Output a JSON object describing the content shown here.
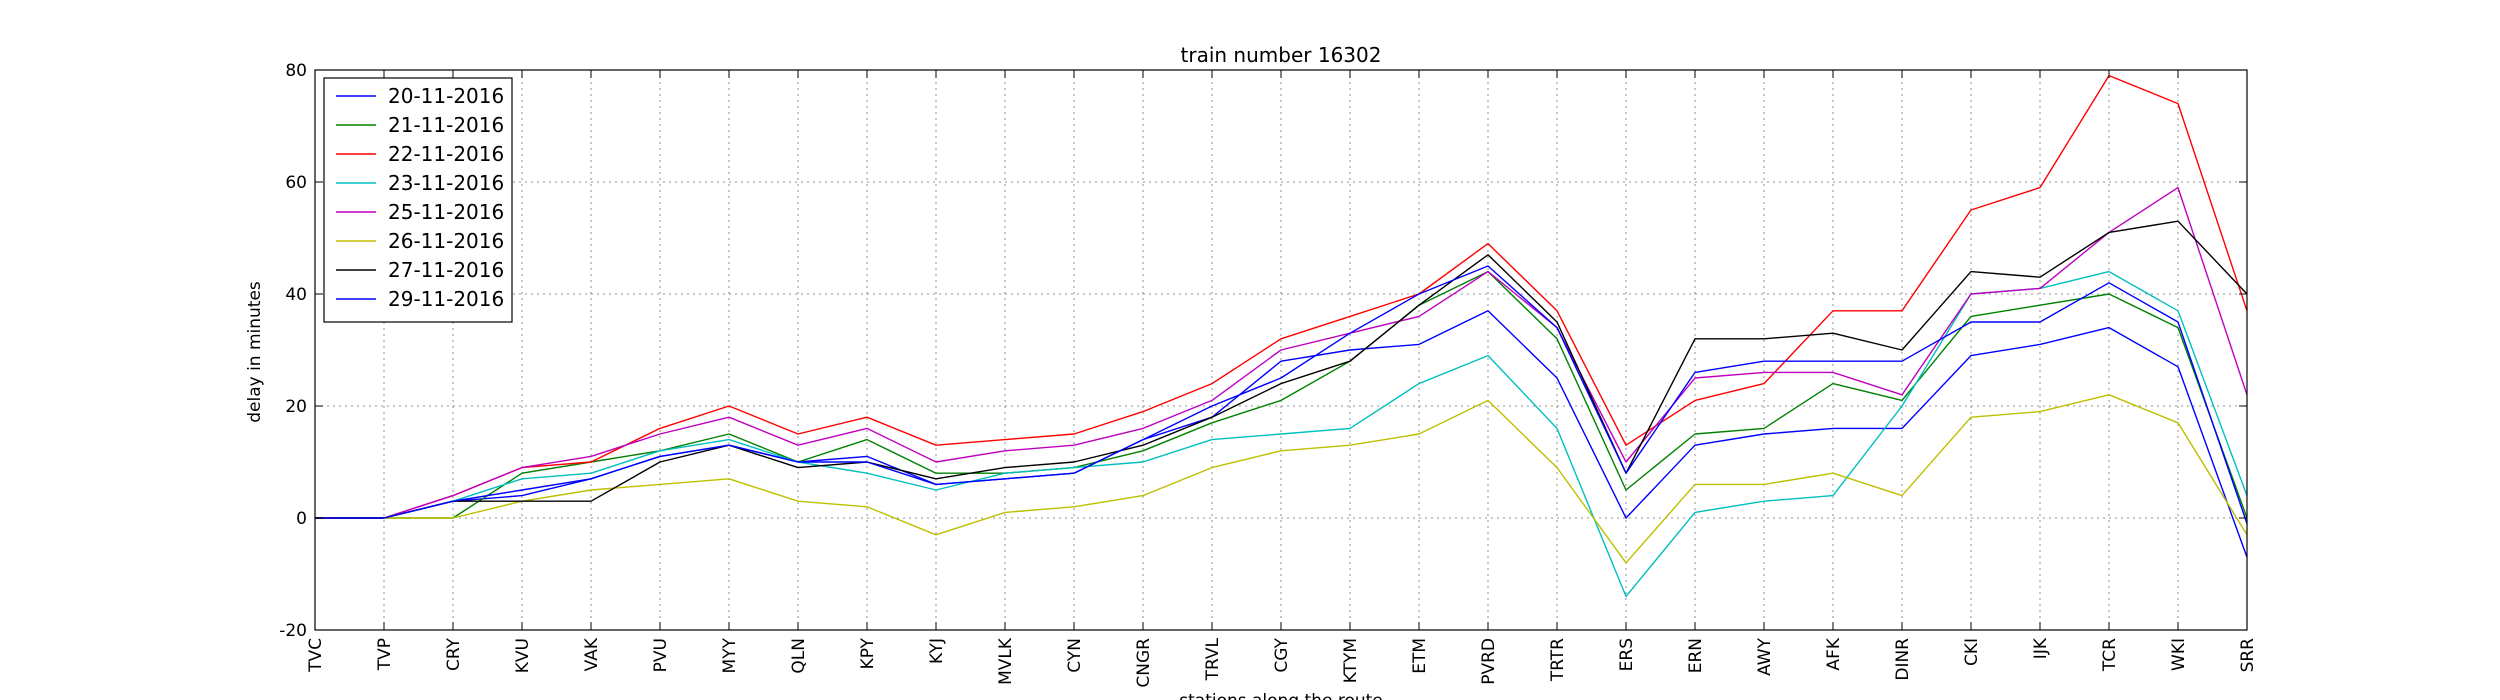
{
  "chart_data": {
    "type": "line",
    "title": "train number 16302",
    "xlabel": "stations along the route",
    "ylabel": "delay in minutes",
    "ylim": [
      -20,
      80
    ],
    "yticks": [
      -20,
      0,
      20,
      40,
      60,
      80
    ],
    "grid": true,
    "legend_position": "top-left",
    "categories": [
      "TVC",
      "TVP",
      "CRY",
      "KVU",
      "VAK",
      "PVU",
      "MYY",
      "QLN",
      "KPY",
      "KYJ",
      "MVLK",
      "CYN",
      "CNGR",
      "TRVL",
      "CGY",
      "KTYM",
      "ETM",
      "PVRD",
      "TRTR",
      "ERS",
      "ERN",
      "AWY",
      "AFK",
      "DINR",
      "CKI",
      "IJK",
      "TCR",
      "WKI",
      "SRR"
    ],
    "series": [
      {
        "name": "20-11-2016",
        "color": "#0000ff",
        "values": [
          0,
          0,
          3,
          4,
          7,
          11,
          13,
          10,
          11,
          6,
          7,
          8,
          14,
          18,
          28,
          30,
          31,
          37,
          25,
          0,
          13,
          15,
          16,
          16,
          29,
          31,
          34,
          27,
          -7
        ]
      },
      {
        "name": "21-11-2016",
        "color": "#008000",
        "values": [
          0,
          0,
          0,
          8,
          10,
          12,
          15,
          10,
          14,
          8,
          8,
          9,
          12,
          17,
          21,
          28,
          38,
          44,
          32,
          5,
          15,
          16,
          24,
          21,
          36,
          38,
          40,
          34,
          0
        ]
      },
      {
        "name": "22-11-2016",
        "color": "#ff0000",
        "values": [
          0,
          0,
          4,
          9,
          10,
          16,
          20,
          15,
          18,
          13,
          14,
          15,
          19,
          24,
          32,
          36,
          40,
          49,
          37,
          13,
          21,
          24,
          37,
          37,
          55,
          59,
          79,
          74,
          37
        ]
      },
      {
        "name": "23-11-2016",
        "color": "#00bfbf",
        "values": [
          0,
          0,
          3,
          7,
          8,
          12,
          14,
          10,
          8,
          5,
          8,
          9,
          10,
          14,
          15,
          16,
          24,
          29,
          16,
          -14,
          1,
          3,
          4,
          20,
          40,
          41,
          44,
          37,
          4
        ]
      },
      {
        "name": "25-11-2016",
        "color": "#bf00bf",
        "values": [
          0,
          0,
          4,
          9,
          11,
          15,
          18,
          13,
          16,
          10,
          12,
          13,
          16,
          21,
          30,
          33,
          36,
          44,
          34,
          10,
          25,
          26,
          26,
          22,
          40,
          41,
          51,
          59,
          22
        ]
      },
      {
        "name": "26-11-2016",
        "color": "#bfbf00",
        "values": [
          0,
          0,
          0,
          3,
          5,
          6,
          7,
          3,
          2,
          -3,
          1,
          2,
          4,
          9,
          12,
          13,
          15,
          21,
          9,
          -8,
          6,
          6,
          8,
          4,
          18,
          19,
          22,
          17,
          -3
        ]
      },
      {
        "name": "27-11-2016",
        "color": "#000000",
        "values": [
          0,
          0,
          3,
          3,
          3,
          10,
          13,
          9,
          10,
          7,
          9,
          10,
          13,
          18,
          24,
          28,
          38,
          47,
          35,
          8,
          32,
          32,
          33,
          30,
          44,
          43,
          51,
          53,
          40
        ]
      },
      {
        "name": "29-11-2016",
        "color": "#0000ff",
        "values": [
          0,
          0,
          3,
          5,
          7,
          11,
          13,
          10,
          10,
          6,
          7,
          8,
          14,
          20,
          25,
          33,
          40,
          45,
          34,
          8,
          26,
          28,
          28,
          28,
          35,
          35,
          42,
          35,
          -1
        ]
      }
    ]
  }
}
